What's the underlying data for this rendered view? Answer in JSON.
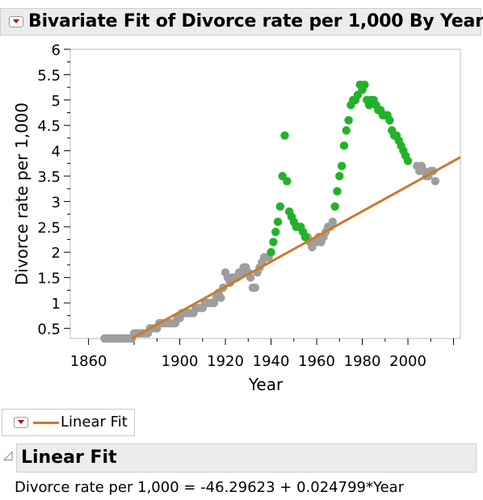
{
  "header": {
    "title": "Bivariate Fit of Divorce rate per 1,000 By Year"
  },
  "legend": {
    "label": "Linear Fit"
  },
  "linear_fit": {
    "title": "Linear Fit",
    "equation": "Divorce rate per 1,000 = -46.29623 + 0.024799*Year",
    "intercept": -46.29623,
    "slope": 0.024799
  },
  "colors": {
    "fitted": "#9e9e9e",
    "highlighted": "#22b22a",
    "fit_line": "#cc7a29"
  },
  "chart_data": {
    "type": "scatter",
    "xlabel": "Year",
    "ylabel": "Divorce rate per 1,000",
    "xlim": [
      1852,
      2023
    ],
    "ylim": [
      0.3,
      6.0
    ],
    "x_ticks": [
      1860,
      1900,
      1920,
      1940,
      1960,
      1980,
      2000
    ],
    "y_ticks": [
      0.5,
      1,
      1.5,
      2,
      2.5,
      3,
      3.5,
      4,
      4.5,
      5,
      5.5,
      6
    ],
    "grid": false,
    "series": [
      {
        "points": [
          [
            1867,
            0.3
          ],
          [
            1868,
            0.3
          ],
          [
            1869,
            0.3
          ],
          [
            1870,
            0.3
          ],
          [
            1871,
            0.3
          ],
          [
            1872,
            0.3
          ],
          [
            1873,
            0.3
          ],
          [
            1874,
            0.3
          ],
          [
            1875,
            0.3
          ],
          [
            1876,
            0.3
          ],
          [
            1877,
            0.3
          ],
          [
            1878,
            0.3
          ],
          [
            1879,
            0.3
          ],
          [
            1880,
            0.4
          ],
          [
            1881,
            0.4
          ],
          [
            1882,
            0.4
          ],
          [
            1883,
            0.4
          ],
          [
            1884,
            0.4
          ],
          [
            1885,
            0.4
          ],
          [
            1886,
            0.4
          ],
          [
            1887,
            0.5
          ],
          [
            1888,
            0.5
          ],
          [
            1889,
            0.5
          ],
          [
            1890,
            0.5
          ],
          [
            1891,
            0.6
          ],
          [
            1892,
            0.6
          ],
          [
            1893,
            0.6
          ],
          [
            1894,
            0.6
          ],
          [
            1895,
            0.6
          ],
          [
            1896,
            0.6
          ],
          [
            1897,
            0.6
          ],
          [
            1898,
            0.6
          ],
          [
            1899,
            0.7
          ],
          [
            1900,
            0.7
          ],
          [
            1901,
            0.8
          ],
          [
            1902,
            0.8
          ],
          [
            1903,
            0.8
          ],
          [
            1904,
            0.8
          ],
          [
            1905,
            0.8
          ],
          [
            1906,
            0.8
          ],
          [
            1907,
            0.9
          ],
          [
            1908,
            0.9
          ],
          [
            1909,
            0.9
          ],
          [
            1910,
            0.9
          ],
          [
            1911,
            1.0
          ],
          [
            1912,
            1.0
          ],
          [
            1913,
            1.0
          ],
          [
            1914,
            1.0
          ],
          [
            1915,
            1.0
          ],
          [
            1916,
            1.1
          ],
          [
            1917,
            1.2
          ],
          [
            1918,
            1.1
          ],
          [
            1919,
            1.3
          ],
          [
            1920,
            1.6
          ],
          [
            1921,
            1.5
          ],
          [
            1922,
            1.4
          ],
          [
            1923,
            1.5
          ],
          [
            1924,
            1.5
          ],
          [
            1925,
            1.5
          ],
          [
            1926,
            1.6
          ],
          [
            1927,
            1.6
          ],
          [
            1928,
            1.7
          ],
          [
            1929,
            1.7
          ],
          [
            1930,
            1.6
          ],
          [
            1931,
            1.5
          ],
          [
            1932,
            1.3
          ],
          [
            1933,
            1.3
          ],
          [
            1934,
            1.6
          ],
          [
            1935,
            1.7
          ],
          [
            1936,
            1.8
          ],
          [
            1937,
            1.9
          ],
          [
            1938,
            1.9
          ],
          [
            1939,
            1.9
          ],
          [
            1956,
            2.3
          ],
          [
            1957,
            2.2
          ],
          [
            1958,
            2.1
          ],
          [
            1959,
            2.2
          ],
          [
            1960,
            2.2
          ],
          [
            1961,
            2.3
          ],
          [
            1962,
            2.2
          ],
          [
            1963,
            2.3
          ],
          [
            1964,
            2.4
          ],
          [
            1965,
            2.5
          ],
          [
            1966,
            2.5
          ],
          [
            1967,
            2.6
          ],
          [
            2004,
            3.7
          ],
          [
            2005,
            3.6
          ],
          [
            2006,
            3.7
          ],
          [
            2007,
            3.6
          ],
          [
            2008,
            3.5
          ],
          [
            2009,
            3.5
          ],
          [
            2010,
            3.6
          ],
          [
            2011,
            3.6
          ],
          [
            2012,
            3.4
          ]
        ]
      },
      {
        "points": [
          [
            1940,
            2.0
          ],
          [
            1941,
            2.2
          ],
          [
            1942,
            2.4
          ],
          [
            1943,
            2.6
          ],
          [
            1944,
            2.9
          ],
          [
            1945,
            3.5
          ],
          [
            1946,
            4.3
          ],
          [
            1947,
            3.4
          ],
          [
            1948,
            2.8
          ],
          [
            1949,
            2.7
          ],
          [
            1950,
            2.6
          ],
          [
            1951,
            2.5
          ],
          [
            1952,
            2.5
          ],
          [
            1953,
            2.5
          ],
          [
            1954,
            2.4
          ],
          [
            1955,
            2.3
          ],
          [
            1968,
            2.9
          ],
          [
            1969,
            3.2
          ],
          [
            1970,
            3.5
          ],
          [
            1971,
            3.7
          ],
          [
            1972,
            4.1
          ],
          [
            1973,
            4.4
          ],
          [
            1974,
            4.6
          ],
          [
            1975,
            4.9
          ],
          [
            1976,
            5.0
          ],
          [
            1977,
            5.0
          ],
          [
            1978,
            5.1
          ],
          [
            1979,
            5.3
          ],
          [
            1980,
            5.2
          ],
          [
            1981,
            5.3
          ],
          [
            1982,
            5.0
          ],
          [
            1983,
            4.9
          ],
          [
            1984,
            5.0
          ],
          [
            1985,
            5.0
          ],
          [
            1986,
            4.9
          ],
          [
            1987,
            4.8
          ],
          [
            1988,
            4.8
          ],
          [
            1989,
            4.7
          ],
          [
            1990,
            4.7
          ],
          [
            1991,
            4.7
          ],
          [
            1992,
            4.6
          ],
          [
            1993,
            4.4
          ],
          [
            1994,
            4.3
          ],
          [
            1995,
            4.3
          ],
          [
            1996,
            4.2
          ],
          [
            1997,
            4.1
          ],
          [
            1998,
            4.0
          ],
          [
            1999,
            3.9
          ],
          [
            2000,
            3.8
          ]
        ]
      }
    ],
    "fit_line": {
      "type": "linear",
      "intercept": -46.29623,
      "slope": 0.024799
    }
  }
}
